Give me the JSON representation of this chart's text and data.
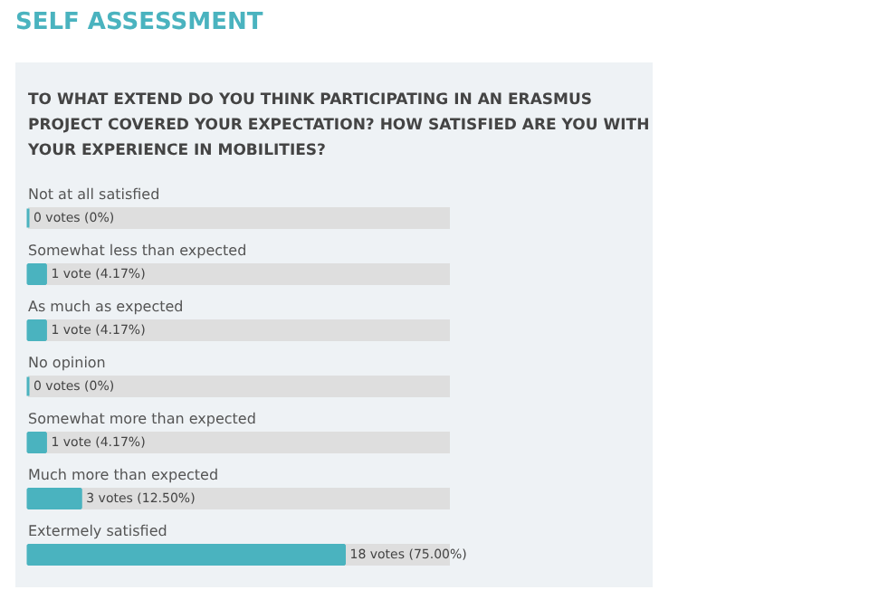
{
  "chart_data": {
    "type": "bar",
    "orientation": "horizontal",
    "title": "SELF ASSESSMENT",
    "subtitle": "TO WHAT EXTEND DO YOU THINK PARTICIPATING IN AN ERASMUS PROJECT COVERED YOUR EXPECTATION? HOW SATISFIED ARE YOU WITH YOUR EXPERIENCE IN MOBILITIES?",
    "categories": [
      "Not at all satisfied",
      "Somewhat less than expected",
      "As much as expected",
      "No opinion",
      "Somewhat more than expected",
      "Much more than expected",
      "Extermely satisfied"
    ],
    "values": [
      0,
      4.17,
      4.17,
      0,
      4.17,
      12.5,
      75
    ],
    "value_labels": [
      "0 votes (0%)",
      "1 vote (4.17%)",
      "1 vote (4.17%)",
      "0 votes (0%)",
      "1 vote (4.17%)",
      "3 votes (12.50%)",
      "18 votes (75.00%)"
    ],
    "color": "#4ab3bf",
    "xlim": [
      0,
      100
    ],
    "tick_labels": false
  }
}
